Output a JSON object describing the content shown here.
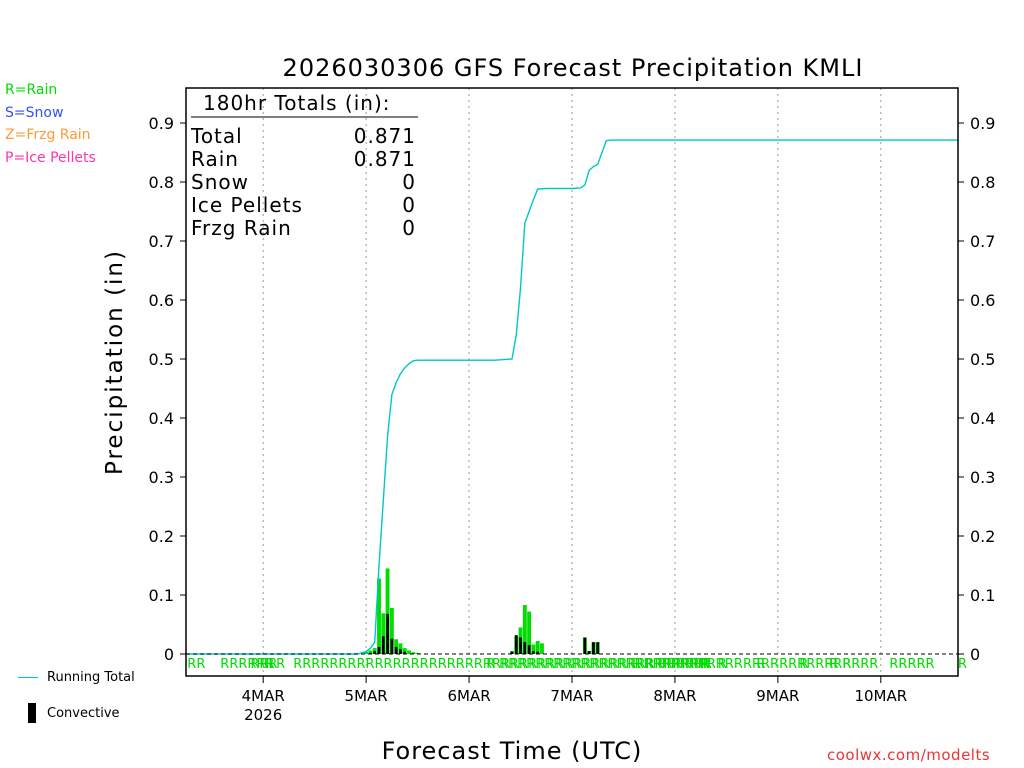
{
  "colors": {
    "rain": "#00dd00",
    "snow": "#3050ff",
    "frzg_rain": "#ff9933",
    "ice_pellets": "#ff33aa",
    "running_total": "#00c8c8",
    "convective": "#000000",
    "credit": "#ee3333",
    "gridline": "#999999"
  },
  "legend": {
    "rain": "R=Rain",
    "snow": "S=Snow",
    "frzg_rain": "Z=Frzg Rain",
    "ice_pellets": "P=Ice Pellets",
    "running_total": "Running Total",
    "convective": "Convective"
  },
  "credit": "coolwx.com/modelts",
  "totals": {
    "header": "180hr Totals (in):",
    "rows": [
      {
        "label": "Total",
        "value": "0.871"
      },
      {
        "label": "Rain",
        "value": "0.871"
      },
      {
        "label": "Snow",
        "value": "0"
      },
      {
        "label": "Ice Pellets",
        "value": "0"
      },
      {
        "label": "Frzg Rain",
        "value": "0"
      }
    ]
  },
  "chart_data": {
    "type": "bar",
    "title": "2026030306 GFS Forecast Precipitation KMLI",
    "xlabel": "Forecast Time (UTC)",
    "ylabel": "Precipitation (in)",
    "ylim": [
      0,
      0.96
    ],
    "xlim_hours": [
      0,
      180
    ],
    "grid": "dotted vertical at day boundaries",
    "y_ticks": [
      "0",
      "0.1",
      "0.2",
      "0.3",
      "0.4",
      "0.5",
      "0.6",
      "0.7",
      "0.8",
      "0.9"
    ],
    "x_ticks": [
      {
        "hour": 18,
        "label": "4MAR",
        "sublabel": "2026"
      },
      {
        "hour": 42,
        "label": "5MAR",
        "sublabel": ""
      },
      {
        "hour": 66,
        "label": "6MAR",
        "sublabel": ""
      },
      {
        "hour": 90,
        "label": "7MAR",
        "sublabel": ""
      },
      {
        "hour": 114,
        "label": "8MAR",
        "sublabel": ""
      },
      {
        "hour": 138,
        "label": "9MAR",
        "sublabel": ""
      },
      {
        "hour": 162,
        "label": "10MAR",
        "sublabel": ""
      }
    ],
    "running_total": {
      "name": "Running Total",
      "x": [
        0,
        40,
        42,
        43,
        44,
        45,
        46,
        47,
        48,
        49,
        50,
        51,
        52,
        53,
        54,
        60,
        66,
        72,
        76,
        77,
        78,
        79,
        80,
        81,
        82,
        84,
        90,
        92,
        93,
        94,
        95,
        96,
        97,
        98,
        99,
        105,
        120,
        150,
        180
      ],
      "y": [
        0.0,
        0.0,
        0.004,
        0.01,
        0.02,
        0.15,
        0.26,
        0.37,
        0.44,
        0.46,
        0.475,
        0.485,
        0.492,
        0.497,
        0.498,
        0.498,
        0.498,
        0.498,
        0.5,
        0.54,
        0.62,
        0.73,
        0.75,
        0.77,
        0.788,
        0.789,
        0.789,
        0.79,
        0.795,
        0.82,
        0.826,
        0.83,
        0.85,
        0.87,
        0.871,
        0.871,
        0.871,
        0.871,
        0.871
      ]
    },
    "series": [
      {
        "name": "Rain",
        "hours": [
          42,
          43,
          44,
          45,
          46,
          47,
          48,
          49,
          50,
          51,
          52,
          53,
          54,
          76,
          77,
          78,
          79,
          80,
          81,
          82,
          83,
          90,
          93,
          94,
          95,
          96
        ],
        "values": [
          0.004,
          0.006,
          0.01,
          0.128,
          0.069,
          0.145,
          0.078,
          0.025,
          0.018,
          0.01,
          0.006,
          0.003,
          0.002,
          0.005,
          0.03,
          0.045,
          0.083,
          0.072,
          0.016,
          0.022,
          0.018,
          0.001,
          0.028,
          0.005,
          0.02,
          0.02
        ]
      },
      {
        "name": "Convective",
        "hours": [
          43,
          44,
          45,
          46,
          47,
          48,
          49,
          50,
          51,
          76,
          77,
          78,
          79,
          80,
          81,
          82,
          93,
          94,
          95,
          96
        ],
        "values": [
          0.002,
          0.005,
          0.012,
          0.03,
          0.068,
          0.026,
          0.012,
          0.008,
          0.004,
          0.004,
          0.032,
          0.028,
          0.02,
          0.015,
          0.005,
          0.004,
          0.028,
          0.005,
          0.02,
          0.02
        ]
      }
    ],
    "ptype_marks": [
      {
        "hour": 0.3,
        "text": "RR"
      },
      {
        "hour": 8,
        "text": "RRRRRR"
      },
      {
        "hour": 15,
        "text": "RRR"
      },
      {
        "hour": 18.2,
        "text": "R"
      },
      {
        "hour": 21,
        "text": "R"
      },
      {
        "hour": 25,
        "text": "RRRRRRRRRRRRRRRRRRRRRRRRRRRRRRRRRRRRRRRRRRRRRR"
      },
      {
        "hour": 70,
        "text": "R"
      },
      {
        "hour": 73,
        "text": "RRRRRRRRRRRRRRRRRRRRRRRRRRRRRRRRRRRRRRR"
      },
      {
        "hour": 104,
        "text": "R"
      },
      {
        "hour": 107,
        "text": "R"
      },
      {
        "hour": 110,
        "text": "RRRRRR"
      },
      {
        "hour": 120,
        "text": "R"
      },
      {
        "hour": 124,
        "text": "R"
      },
      {
        "hour": 133,
        "text": "R"
      },
      {
        "hour": 143,
        "text": "R"
      },
      {
        "hour": 150,
        "text": "R"
      },
      {
        "hour": 153,
        "text": "RRRR"
      },
      {
        "hour": 164,
        "text": "RRRRR"
      },
      {
        "hour": 180,
        "text": "R"
      }
    ]
  }
}
